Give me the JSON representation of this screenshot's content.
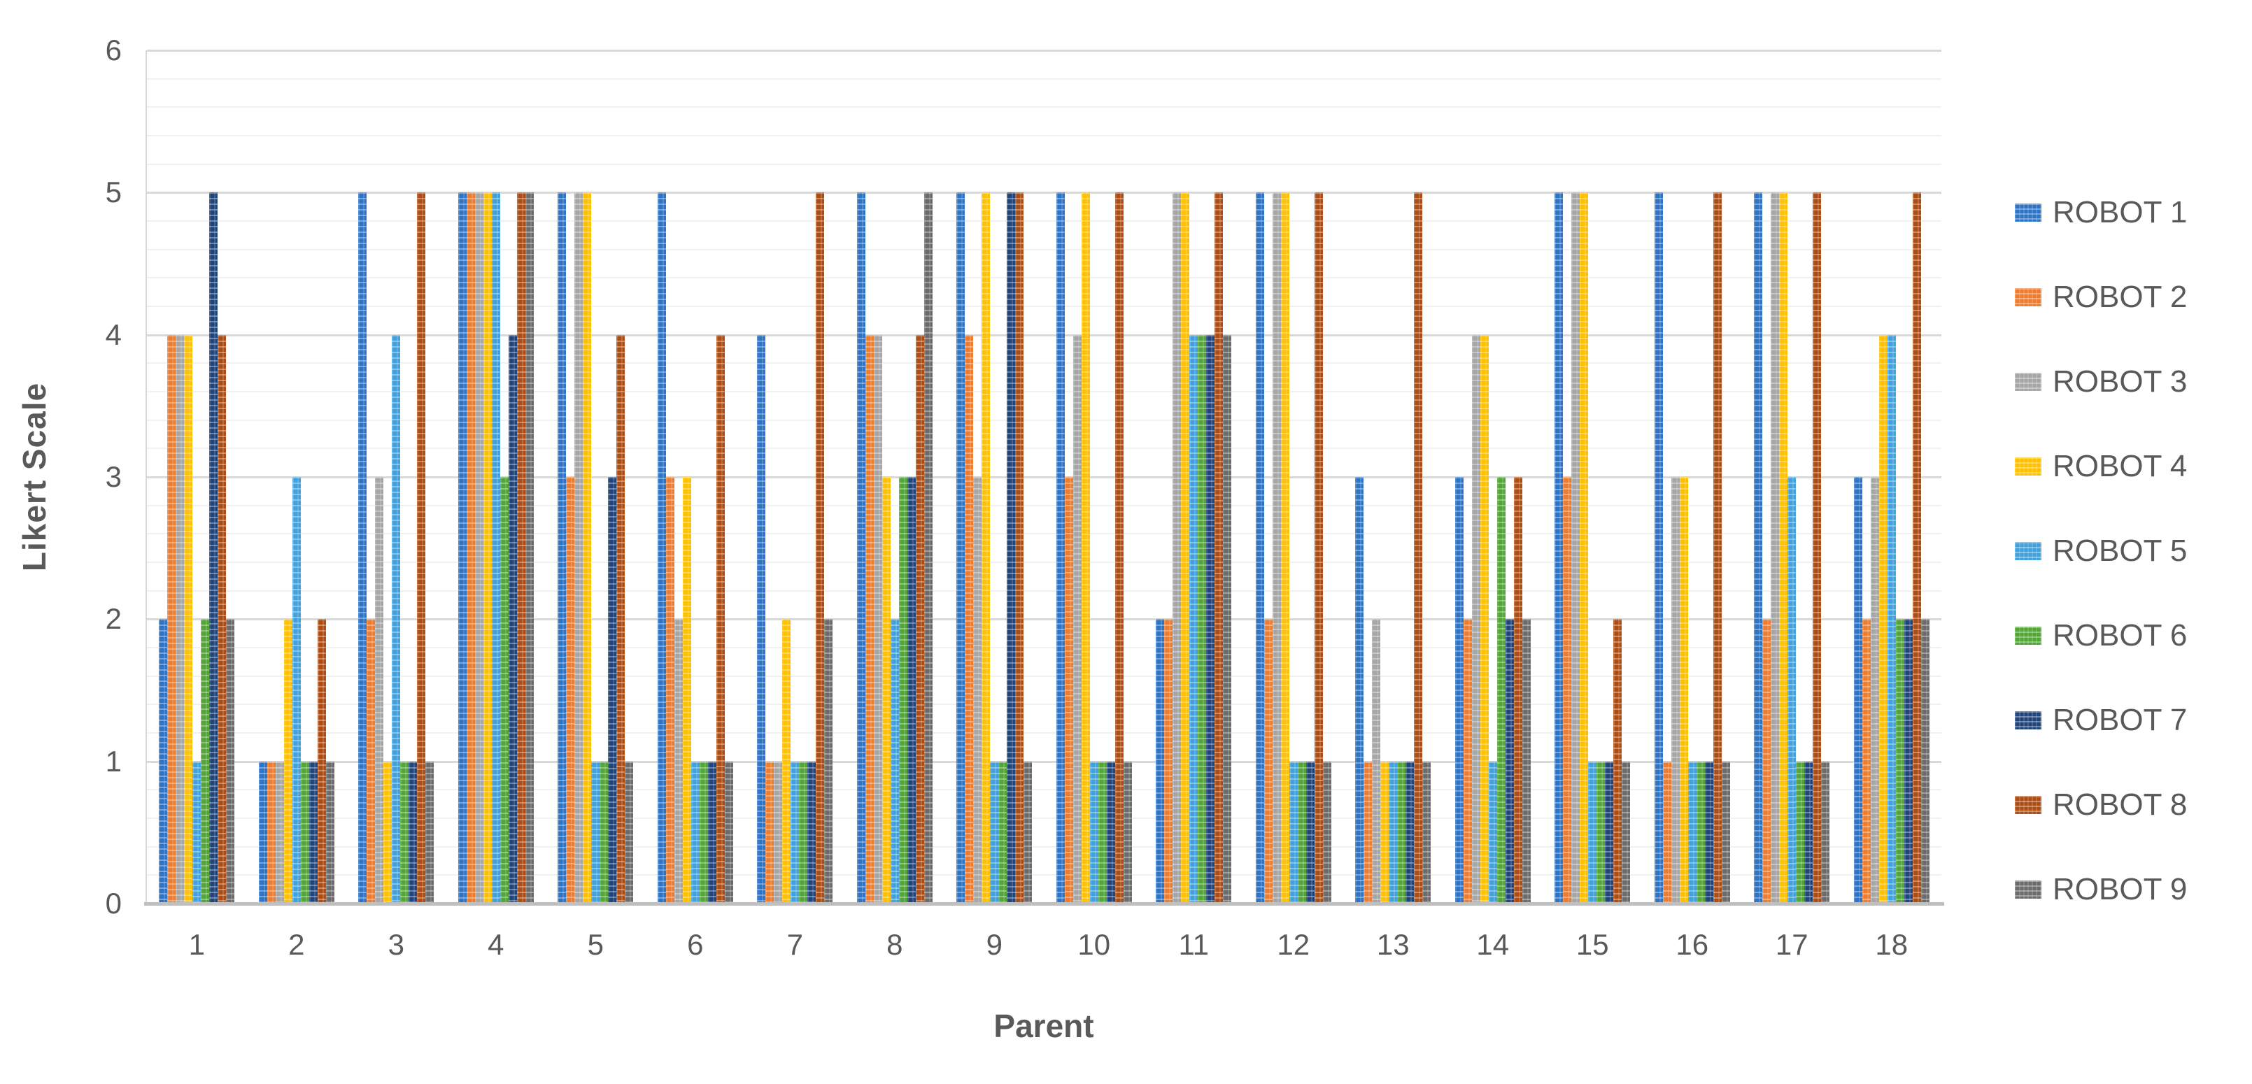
{
  "chart_data": {
    "type": "bar",
    "title": "",
    "xlabel": "Parent",
    "ylabel": "Likert Scale",
    "ylim": [
      0,
      6
    ],
    "y_major_step": 1,
    "y_minor_step": 0.2,
    "y_tick_labels": [
      "0",
      "1",
      "2",
      "3",
      "4",
      "5",
      "6"
    ],
    "grid": true,
    "legend_position": "right",
    "text_color": "#595959",
    "categories": [
      "1",
      "2",
      "3",
      "4",
      "5",
      "6",
      "7",
      "8",
      "9",
      "10",
      "11",
      "12",
      "13",
      "14",
      "15",
      "16",
      "17",
      "18"
    ],
    "series": [
      {
        "name": "ROBOT 1",
        "color": "#2E74C6",
        "values": [
          2,
          1,
          5,
          5,
          5,
          5,
          4,
          5,
          5,
          5,
          2,
          5,
          3,
          3,
          5,
          5,
          5,
          3
        ]
      },
      {
        "name": "ROBOT 2",
        "color": "#EE7C30",
        "values": [
          4,
          1,
          2,
          5,
          3,
          3,
          1,
          4,
          4,
          3,
          2,
          2,
          1,
          2,
          3,
          1,
          2,
          2
        ]
      },
      {
        "name": "ROBOT 3",
        "color": "#A6A6A6",
        "values": [
          4,
          1,
          3,
          5,
          5,
          2,
          1,
          4,
          3,
          4,
          5,
          5,
          2,
          4,
          5,
          3,
          5,
          3
        ]
      },
      {
        "name": "ROBOT 4",
        "color": "#FFC000",
        "values": [
          4,
          2,
          1,
          5,
          5,
          3,
          2,
          3,
          5,
          5,
          5,
          5,
          1,
          4,
          5,
          3,
          5,
          4
        ]
      },
      {
        "name": "ROBOT 5",
        "color": "#41A1DC",
        "values": [
          1,
          3,
          4,
          5,
          1,
          1,
          1,
          2,
          1,
          1,
          4,
          1,
          1,
          1,
          1,
          1,
          3,
          4
        ]
      },
      {
        "name": "ROBOT 6",
        "color": "#52A637",
        "values": [
          2,
          1,
          1,
          3,
          1,
          1,
          1,
          3,
          1,
          1,
          4,
          1,
          1,
          3,
          1,
          1,
          1,
          2
        ]
      },
      {
        "name": "ROBOT 7",
        "color": "#20457C",
        "values": [
          5,
          1,
          1,
          4,
          3,
          1,
          1,
          3,
          5,
          1,
          4,
          1,
          1,
          2,
          1,
          1,
          1,
          2
        ]
      },
      {
        "name": "ROBOT 8",
        "color": "#AE4D13",
        "values": [
          4,
          2,
          5,
          5,
          4,
          4,
          5,
          4,
          5,
          5,
          5,
          5,
          5,
          3,
          2,
          5,
          5,
          5
        ]
      },
      {
        "name": "ROBOT 9",
        "color": "#6B6B6B",
        "values": [
          2,
          1,
          1,
          5,
          1,
          1,
          2,
          5,
          1,
          1,
          4,
          1,
          1,
          2,
          1,
          1,
          1,
          2
        ]
      }
    ]
  }
}
